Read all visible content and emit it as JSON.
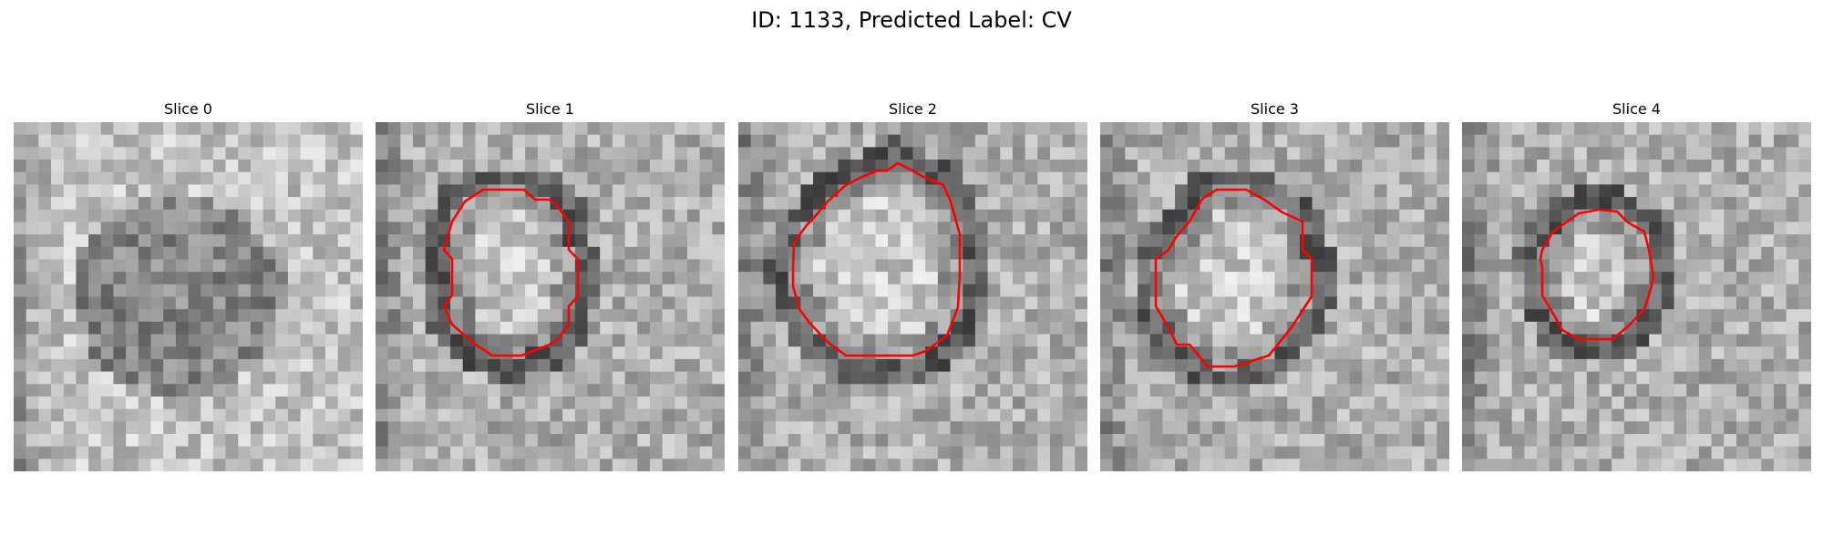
{
  "figure": {
    "title": "ID: 1133, Predicted Label: CV",
    "contour_color": "#ff0000",
    "colormap": "grayscale",
    "grid_size": 28
  },
  "slices": [
    {
      "label": "Slice 0",
      "has_contour": false
    },
    {
      "label": "Slice 1",
      "has_contour": true
    },
    {
      "label": "Slice 2",
      "has_contour": true
    },
    {
      "label": "Slice 3",
      "has_contour": true
    },
    {
      "label": "Slice 4",
      "has_contour": true
    }
  ]
}
